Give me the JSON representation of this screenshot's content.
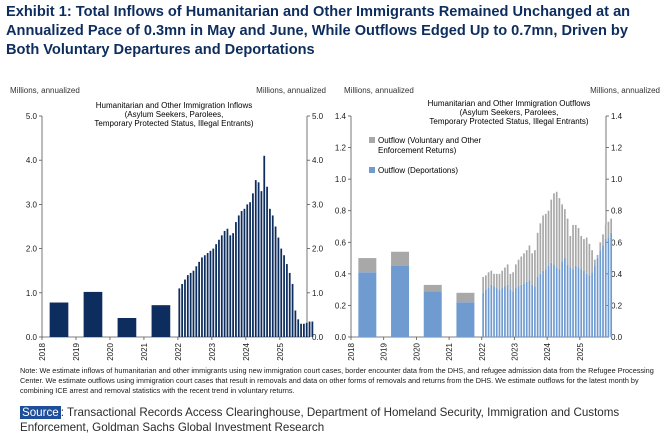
{
  "exhibit": {
    "title": "Exhibit 1: Total Inflows of Humanitarian and Other Immigrants Remained Unchanged at an Annualized Pace of 0.3mn in May and June, While Outflows Edged Up to 0.7mn, Driven by Both Voluntary Departures and Deportations",
    "note": "Note: We estimate inflows of humanitarian and other immigrants using new immigration court cases, border encounter data from the DHS, and refugee admission data from the Refugee Processing Center. We estimate outflows using immigration court cases that result in removals and data on other forms of removals and returns from the DHS.  We estimate outflows for the latest month by combining ICE arrest and removal statistics with the recent trend in voluntary returns.",
    "source_label": "Source",
    "source_text": ": Transactional Records Access Clearinghouse, Department of Homeland Security, Immigration and Customs Enforcement, Goldman Sachs Global Investment Research"
  },
  "colors": {
    "inflow": "#0d2d5e",
    "deportations": "#6f9bd1",
    "voluntary": "#a8a8a8",
    "axis": "#555555"
  },
  "chart_data": [
    {
      "type": "bar",
      "title_lines": [
        "Humanitarian and Other Immigration Inflows",
        "(Asylum Seekers, Parolees,",
        "Temporary Protected Status, Illegal Entrants)"
      ],
      "ylabel_left": "Millions, annualized",
      "ylabel_right": "Millions, annualized",
      "ylim": [
        0,
        5
      ],
      "yticks": [
        "0.0",
        "1.0",
        "2.0",
        "3.0",
        "4.0",
        "5.0"
      ],
      "xlim": [
        2018,
        2025.8
      ],
      "xticks": [
        "2018",
        "2019",
        "2020",
        "2021",
        "2022",
        "2023",
        "2024",
        "2025"
      ],
      "annual_bars": [
        {
          "year": 2018,
          "value": 0.78
        },
        {
          "year": 2019,
          "value": 1.02
        },
        {
          "year": 2020,
          "value": 0.43
        },
        {
          "year": 2021,
          "value": 0.72
        }
      ],
      "monthly_start": 2022.0,
      "monthly_values": [
        1.1,
        1.2,
        1.3,
        1.4,
        1.45,
        1.5,
        1.6,
        1.7,
        1.8,
        1.85,
        1.9,
        1.95,
        2.0,
        2.1,
        2.2,
        2.3,
        2.4,
        2.45,
        2.3,
        2.35,
        2.6,
        2.75,
        2.85,
        2.9,
        3.0,
        3.05,
        3.25,
        3.55,
        3.5,
        3.3,
        4.1,
        3.4,
        2.9,
        2.75,
        2.5,
        2.25,
        2.0,
        1.85,
        1.65,
        1.45,
        1.2,
        0.6,
        0.4,
        0.3,
        0.3,
        0.32,
        0.35,
        0.35
      ]
    },
    {
      "type": "bar",
      "stacked": true,
      "title_lines": [
        "Humanitarian and Other Immigration Outflows",
        "(Asylum Seekers, Parolees,",
        "Temporary Protected Status, Illegal Entrants)"
      ],
      "ylabel_left": "Millions, annualized",
      "ylabel_right": "Millions, annualized",
      "ylim": [
        0,
        1.4
      ],
      "yticks": [
        "0.0",
        "0.2",
        "0.4",
        "0.6",
        "0.8",
        "1.0",
        "1.2",
        "1.4"
      ],
      "xlim": [
        2018,
        2025.8
      ],
      "xticks": [
        "2018",
        "2019",
        "2020",
        "2021",
        "2022",
        "2023",
        "2024",
        "2025"
      ],
      "legend": [
        "Outflow (Voluntary and Other",
        "Enforcement Returns)",
        "Outflow (Deportations)"
      ],
      "legend_placement": "top-left",
      "annual_bars": [
        {
          "year": 2018,
          "deportations": 0.41,
          "voluntary": 0.09
        },
        {
          "year": 2019,
          "deportations": 0.45,
          "voluntary": 0.09
        },
        {
          "year": 2020,
          "deportations": 0.29,
          "voluntary": 0.04
        },
        {
          "year": 2021,
          "deportations": 0.22,
          "voluntary": 0.06
        }
      ],
      "monthly_start": 2022.0,
      "deportations": [
        0.28,
        0.3,
        0.31,
        0.33,
        0.32,
        0.31,
        0.3,
        0.31,
        0.32,
        0.33,
        0.3,
        0.29,
        0.31,
        0.32,
        0.33,
        0.34,
        0.35,
        0.36,
        0.33,
        0.32,
        0.38,
        0.4,
        0.42,
        0.43,
        0.45,
        0.47,
        0.46,
        0.44,
        0.43,
        0.48,
        0.5,
        0.46,
        0.44,
        0.43,
        0.45,
        0.44,
        0.43,
        0.42,
        0.4,
        0.39,
        0.41,
        0.45,
        0.5,
        0.55,
        0.58,
        0.62,
        0.63,
        0.66
      ],
      "voluntary": [
        0.1,
        0.09,
        0.1,
        0.09,
        0.08,
        0.09,
        0.1,
        0.11,
        0.12,
        0.13,
        0.1,
        0.12,
        0.15,
        0.17,
        0.18,
        0.19,
        0.2,
        0.22,
        0.2,
        0.23,
        0.28,
        0.32,
        0.35,
        0.35,
        0.35,
        0.4,
        0.45,
        0.48,
        0.45,
        0.36,
        0.31,
        0.29,
        0.2,
        0.28,
        0.26,
        0.25,
        0.21,
        0.2,
        0.23,
        0.2,
        0.14,
        0.04,
        0.02,
        0.05,
        0.07,
        0.09,
        0.1,
        0.09
      ]
    }
  ]
}
